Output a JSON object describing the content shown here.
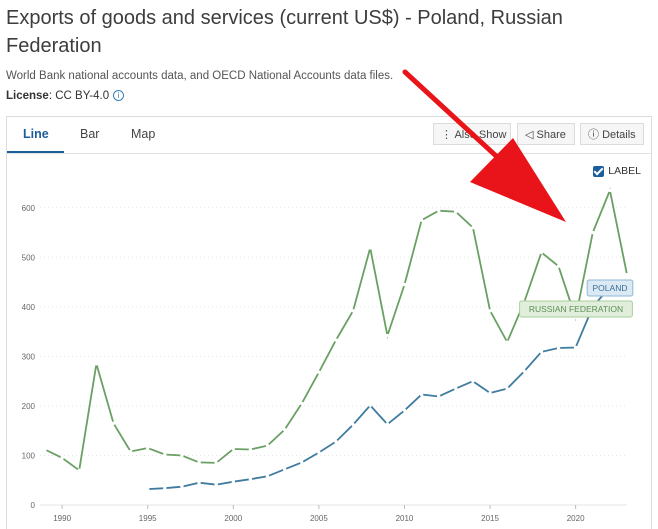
{
  "header": {
    "title": "Exports of goods and services (current US$) - Poland, Russian Federation",
    "source": "World Bank national accounts data, and OECD National Accounts data files.",
    "license_label": "License",
    "license_value": ": CC BY-4.0"
  },
  "tabs": [
    "Line",
    "Bar",
    "Map"
  ],
  "toolbar": {
    "also_show": "Also Show",
    "share": "Share",
    "details": "Details"
  },
  "label_toggle": "LABEL",
  "colors": {
    "accent": "#1b5e9b",
    "russia": "#6aa063",
    "poland": "#3f7ca0",
    "arrow": "#e8141a"
  },
  "chart_data": {
    "type": "line",
    "x": [
      1989,
      1990,
      1991,
      1992,
      1993,
      1994,
      1995,
      1996,
      1997,
      1998,
      1999,
      2000,
      2001,
      2002,
      2003,
      2004,
      2005,
      2006,
      2007,
      2008,
      2009,
      2010,
      2011,
      2012,
      2013,
      2014,
      2015,
      2016,
      2017,
      2018,
      2019,
      2020,
      2021,
      2022,
      2023
    ],
    "series": [
      {
        "name": "RUSSIAN FEDERATION",
        "values": [
          112,
          95,
          70,
          285,
          165,
          108,
          115,
          102,
          100,
          86,
          85,
          113,
          112,
          120,
          152,
          205,
          268,
          333,
          392,
          519,
          342,
          445,
          575,
          594,
          592,
          560,
          392,
          329,
          410,
          510,
          482,
          378,
          550,
          635,
          465
        ]
      },
      {
        "name": "POLAND",
        "values": [
          null,
          null,
          null,
          null,
          null,
          null,
          32,
          34,
          37,
          45,
          41,
          47,
          52,
          58,
          72,
          86,
          106,
          128,
          162,
          201,
          163,
          191,
          223,
          219,
          235,
          250,
          226,
          235,
          270,
          309,
          317,
          318,
          400,
          440,
          455
        ]
      }
    ],
    "ylim": [
      0,
      650
    ],
    "yticks": [
      "0",
      "100",
      "200",
      "300",
      "400",
      "500",
      "600"
    ],
    "xticks": [
      "1990",
      "1995",
      "2000",
      "2005",
      "2010",
      "2015",
      "2020"
    ],
    "grid": true,
    "annotation": "red arrow pointing at 2021"
  }
}
